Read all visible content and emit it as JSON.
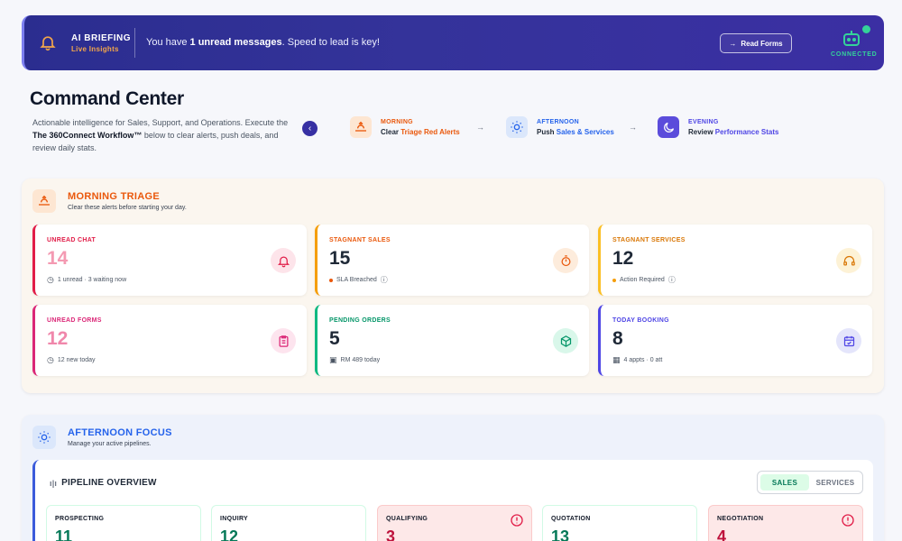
{
  "banner": {
    "title": "AI BRIEFING",
    "subtitle": "Live Insights",
    "message_pre": "You have ",
    "message_bold": "1 unread messages",
    "message_post": ". Speed to lead is key!",
    "button": "Read Forms",
    "status": "CONNECTED"
  },
  "header": {
    "title": "Command Center",
    "desc_pre": "Actionable intelligence for Sales, Support, and Operations. Execute the ",
    "desc_bold": "The 360Connect Workflow™",
    "desc_post": " below to clear alerts, push deals, and review daily stats."
  },
  "workflow": [
    {
      "label": "MORNING",
      "verb": "Clear ",
      "target": "Triage Red Alerts",
      "color": "#ea580c"
    },
    {
      "label": "AFTERNOON",
      "verb": "Push ",
      "target": "Sales & Services",
      "color": "#2563eb"
    },
    {
      "label": "EVENING",
      "verb": "Review ",
      "target": "Performance Stats",
      "color": "#4f46e5"
    }
  ],
  "morning": {
    "title": "MORNING TRIAGE",
    "subtitle": "Clear these alerts before starting your day.",
    "cards": [
      {
        "label": "UNREAD CHAT",
        "value": "14",
        "meta": "1 unread · 3 waiting now",
        "color": "#e11d48",
        "valueColor": "#f49ab2"
      },
      {
        "label": "STAGNANT SALES",
        "value": "15",
        "meta": "SLA Breached",
        "color": "#ea580c",
        "valueColor": "#1f2937"
      },
      {
        "label": "STAGNANT SERVICES",
        "value": "12",
        "meta": "Action Required",
        "color": "#d97706",
        "valueColor": "#1f2937"
      },
      {
        "label": "UNREAD FORMS",
        "value": "12",
        "meta": "12 new today",
        "color": "#db2777",
        "valueColor": "#f087ab"
      },
      {
        "label": "PENDING ORDERS",
        "value": "5",
        "meta": "RM 489 today",
        "color": "#059669",
        "valueColor": "#1f2937"
      },
      {
        "label": "TODAY BOOKING",
        "value": "8",
        "meta": "4 appts · 0 att",
        "color": "#4f46e5",
        "valueColor": "#1f2937"
      }
    ]
  },
  "afternoon": {
    "title": "AFTERNOON FOCUS",
    "subtitle": "Manage your active pipelines.",
    "pipeline_title": "PIPELINE OVERVIEW",
    "toggle": [
      "SALES",
      "SERVICES"
    ],
    "stages": [
      {
        "name": "PROSPECTING",
        "value": "11",
        "alert": false
      },
      {
        "name": "INQUIRY",
        "value": "12",
        "alert": false
      },
      {
        "name": "QUALIFYING",
        "value": "3",
        "alert": true
      },
      {
        "name": "QUOTATION",
        "value": "13",
        "alert": false
      },
      {
        "name": "NEGOTIATION",
        "value": "4",
        "alert": true
      }
    ]
  }
}
